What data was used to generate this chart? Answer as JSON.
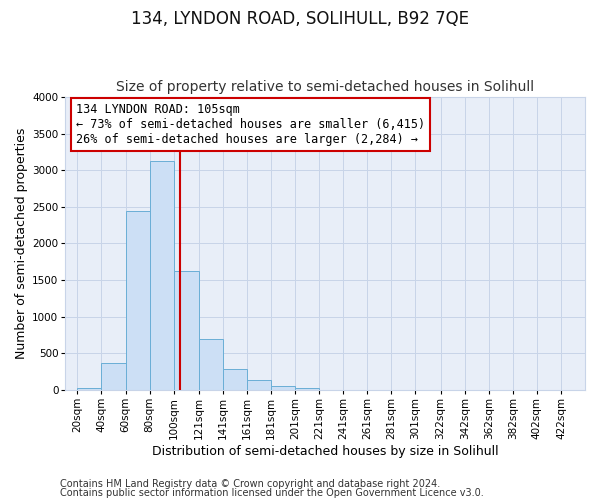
{
  "title": "134, LYNDON ROAD, SOLIHULL, B92 7QE",
  "subtitle": "Size of property relative to semi-detached houses in Solihull",
  "xlabel": "Distribution of semi-detached houses by size in Solihull",
  "ylabel": "Number of semi-detached properties",
  "bin_labels": [
    "20sqm",
    "40sqm",
    "60sqm",
    "80sqm",
    "100sqm",
    "121sqm",
    "141sqm",
    "161sqm",
    "181sqm",
    "201sqm",
    "221sqm",
    "241sqm",
    "261sqm",
    "281sqm",
    "301sqm",
    "322sqm",
    "342sqm",
    "362sqm",
    "382sqm",
    "402sqm",
    "422sqm"
  ],
  "bin_edges": [
    20,
    40,
    60,
    80,
    100,
    121,
    141,
    161,
    181,
    201,
    221,
    241,
    261,
    281,
    301,
    322,
    342,
    362,
    382,
    402,
    422
  ],
  "bin_widths": [
    20,
    20,
    20,
    20,
    21,
    20,
    20,
    20,
    20,
    20,
    20,
    20,
    20,
    20,
    21,
    20,
    20,
    20,
    20,
    20,
    20
  ],
  "bar_heights": [
    30,
    370,
    2440,
    3130,
    1630,
    690,
    290,
    130,
    55,
    20,
    5,
    0,
    0,
    0,
    0,
    0,
    0,
    0,
    0,
    0,
    0
  ],
  "bar_color": "#ccdff5",
  "bar_edge_color": "#6aaed6",
  "property_value": 105,
  "vline_color": "#cc0000",
  "annotation_line1": "134 LYNDON ROAD: 105sqm",
  "annotation_line2": "← 73% of semi-detached houses are smaller (6,415)",
  "annotation_line3": "26% of semi-detached houses are larger (2,284) →",
  "annotation_box_color": "#ffffff",
  "annotation_box_edge_color": "#cc0000",
  "ylim": [
    0,
    4000
  ],
  "yticks": [
    0,
    500,
    1000,
    1500,
    2000,
    2500,
    3000,
    3500,
    4000
  ],
  "xlim_min": 10,
  "xlim_max": 442,
  "footer1": "Contains HM Land Registry data © Crown copyright and database right 2024.",
  "footer2": "Contains public sector information licensed under the Open Government Licence v3.0.",
  "background_color": "#ffffff",
  "plot_bg_color": "#e8eef8",
  "grid_color": "#c8d4e8",
  "title_fontsize": 12,
  "subtitle_fontsize": 10,
  "axis_label_fontsize": 9,
  "tick_fontsize": 7.5,
  "annotation_fontsize": 8.5,
  "footer_fontsize": 7
}
